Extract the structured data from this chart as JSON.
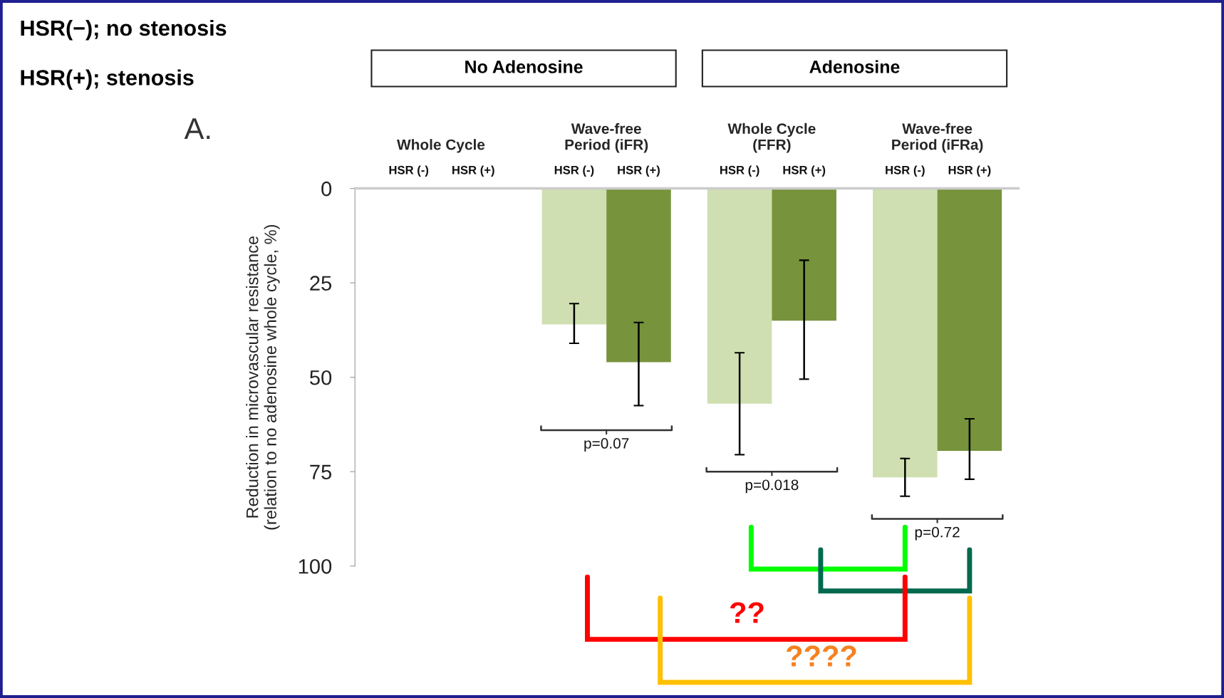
{
  "chart_data": {
    "type": "bar",
    "categories": [
      "Whole Cycle",
      "Wave-free\nPeriod (iFR)",
      "Whole Cycle\n(FFR)",
      "Wave-free\nPeriod (iFRa)"
    ],
    "series": [
      {
        "name": "HSR (-)",
        "color": "#cfdfb1",
        "values": [
          null,
          36,
          57,
          76.5
        ],
        "errors": [
          null,
          [
            30.5,
            41
          ],
          [
            43.5,
            70.5
          ],
          [
            71.5,
            81.5
          ]
        ]
      },
      {
        "name": "HSR (+)",
        "color": "#77933c",
        "values": [
          null,
          46,
          35,
          69.5
        ],
        "errors": [
          null,
          [
            35.5,
            57.5
          ],
          [
            19,
            50.5
          ],
          [
            61,
            77
          ]
        ]
      }
    ],
    "ylabel": "Reduction in microvascular resistance\n(relation to no adenosine whole cycle, %)",
    "ylim": [
      100,
      0
    ],
    "yticks": [
      0,
      25,
      50,
      75,
      100
    ],
    "grid": false,
    "legend": false,
    "annotations": [
      "HSR(−); no stenosis",
      "HSR(+); stenosis",
      "No Adenosine",
      "Adenosine",
      "A.",
      "p=0.07",
      "p=0.018",
      "p=0.72",
      "??",
      "????"
    ]
  }
}
